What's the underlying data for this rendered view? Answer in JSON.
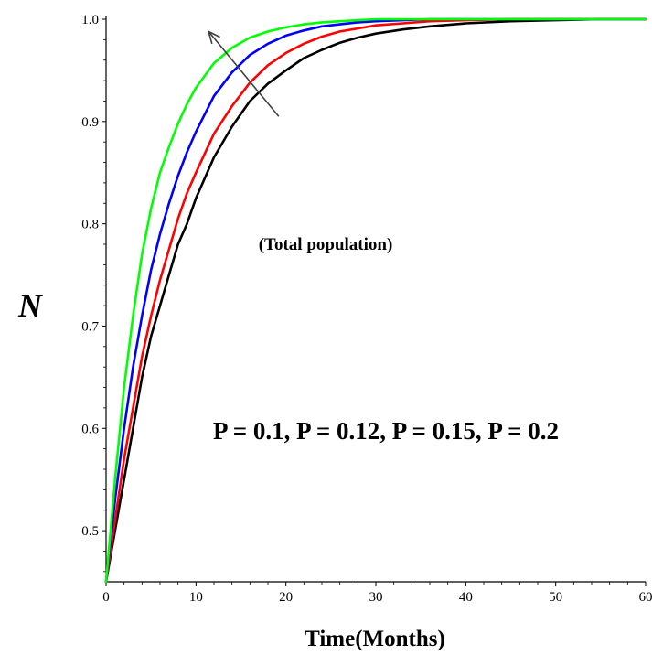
{
  "chart_data": {
    "type": "line",
    "title": "",
    "xlabel": "Time(Months)",
    "ylabel": "N",
    "xlim": [
      0,
      60
    ],
    "ylim": [
      0.45,
      1.0
    ],
    "x_ticks": [
      "0",
      "10",
      "20",
      "30",
      "40",
      "50",
      "60"
    ],
    "y_ticks": [
      "0.5",
      "0.6",
      "0.7",
      "0.8",
      "0.9",
      "1.0"
    ],
    "grid": false,
    "legend": "none",
    "x": [
      0,
      1,
      2,
      3,
      4,
      5,
      6,
      7,
      8,
      9,
      10,
      12,
      14,
      16,
      18,
      20,
      22,
      24,
      26,
      28,
      30,
      33,
      36,
      40,
      45,
      50,
      55,
      60
    ],
    "series": [
      {
        "color": "#000000",
        "values": [
          0.45,
          0.5,
          0.55,
          0.6,
          0.65,
          0.69,
          0.72,
          0.75,
          0.78,
          0.8,
          0.825,
          0.865,
          0.895,
          0.92,
          0.937,
          0.95,
          0.962,
          0.97,
          0.977,
          0.982,
          0.986,
          0.99,
          0.993,
          0.996,
          0.998,
          0.999,
          1.0,
          1.0
        ]
      },
      {
        "color": "#ff0000",
        "values": [
          0.45,
          0.51,
          0.57,
          0.62,
          0.67,
          0.71,
          0.745,
          0.775,
          0.805,
          0.83,
          0.85,
          0.888,
          0.915,
          0.938,
          0.955,
          0.967,
          0.976,
          0.983,
          0.988,
          0.991,
          0.994,
          0.996,
          0.998,
          0.999,
          1.0,
          1.0,
          1.0,
          1.0
        ]
      },
      {
        "color": "#0000ff",
        "values": [
          0.45,
          0.53,
          0.6,
          0.66,
          0.71,
          0.755,
          0.79,
          0.82,
          0.847,
          0.87,
          0.89,
          0.925,
          0.948,
          0.965,
          0.976,
          0.984,
          0.989,
          0.993,
          0.995,
          0.997,
          0.998,
          0.999,
          1.0,
          1.0,
          1.0,
          1.0,
          1.0,
          1.0
        ]
      },
      {
        "color": "#00ff00",
        "values": [
          0.45,
          0.55,
          0.64,
          0.71,
          0.77,
          0.815,
          0.85,
          0.875,
          0.898,
          0.917,
          0.933,
          0.957,
          0.972,
          0.982,
          0.988,
          0.992,
          0.995,
          0.997,
          0.998,
          0.999,
          1.0,
          1.0,
          1.0,
          1.0,
          1.0,
          1.0,
          1.0,
          1.0
        ]
      }
    ],
    "annotations": [
      {
        "text": "(Total population)"
      },
      {
        "text": "P = 0.1, P = 0.12, P = 0.15, P = 0.2"
      }
    ],
    "arrow": {
      "from": [
        19.2,
        0.905
      ],
      "to": [
        11.4,
        0.988
      ],
      "color": "#404040"
    }
  }
}
